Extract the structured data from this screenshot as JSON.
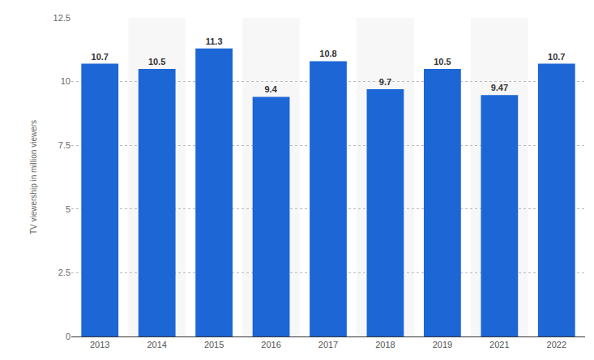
{
  "chart_data": {
    "type": "bar",
    "y_label": "TV viewership in million viewers",
    "categories": [
      "2013",
      "2014",
      "2015",
      "2016",
      "2017",
      "2018",
      "2019",
      "2021",
      "2022"
    ],
    "values": [
      10.7,
      10.5,
      11.3,
      9.4,
      10.8,
      9.7,
      10.5,
      9.47,
      10.7
    ],
    "color": "#1c66d6",
    "ylim": [
      0,
      12.5
    ],
    "yticks": [
      0,
      2.5,
      5,
      7.5,
      10,
      12.5
    ],
    "grid": true,
    "data_labels": true
  }
}
